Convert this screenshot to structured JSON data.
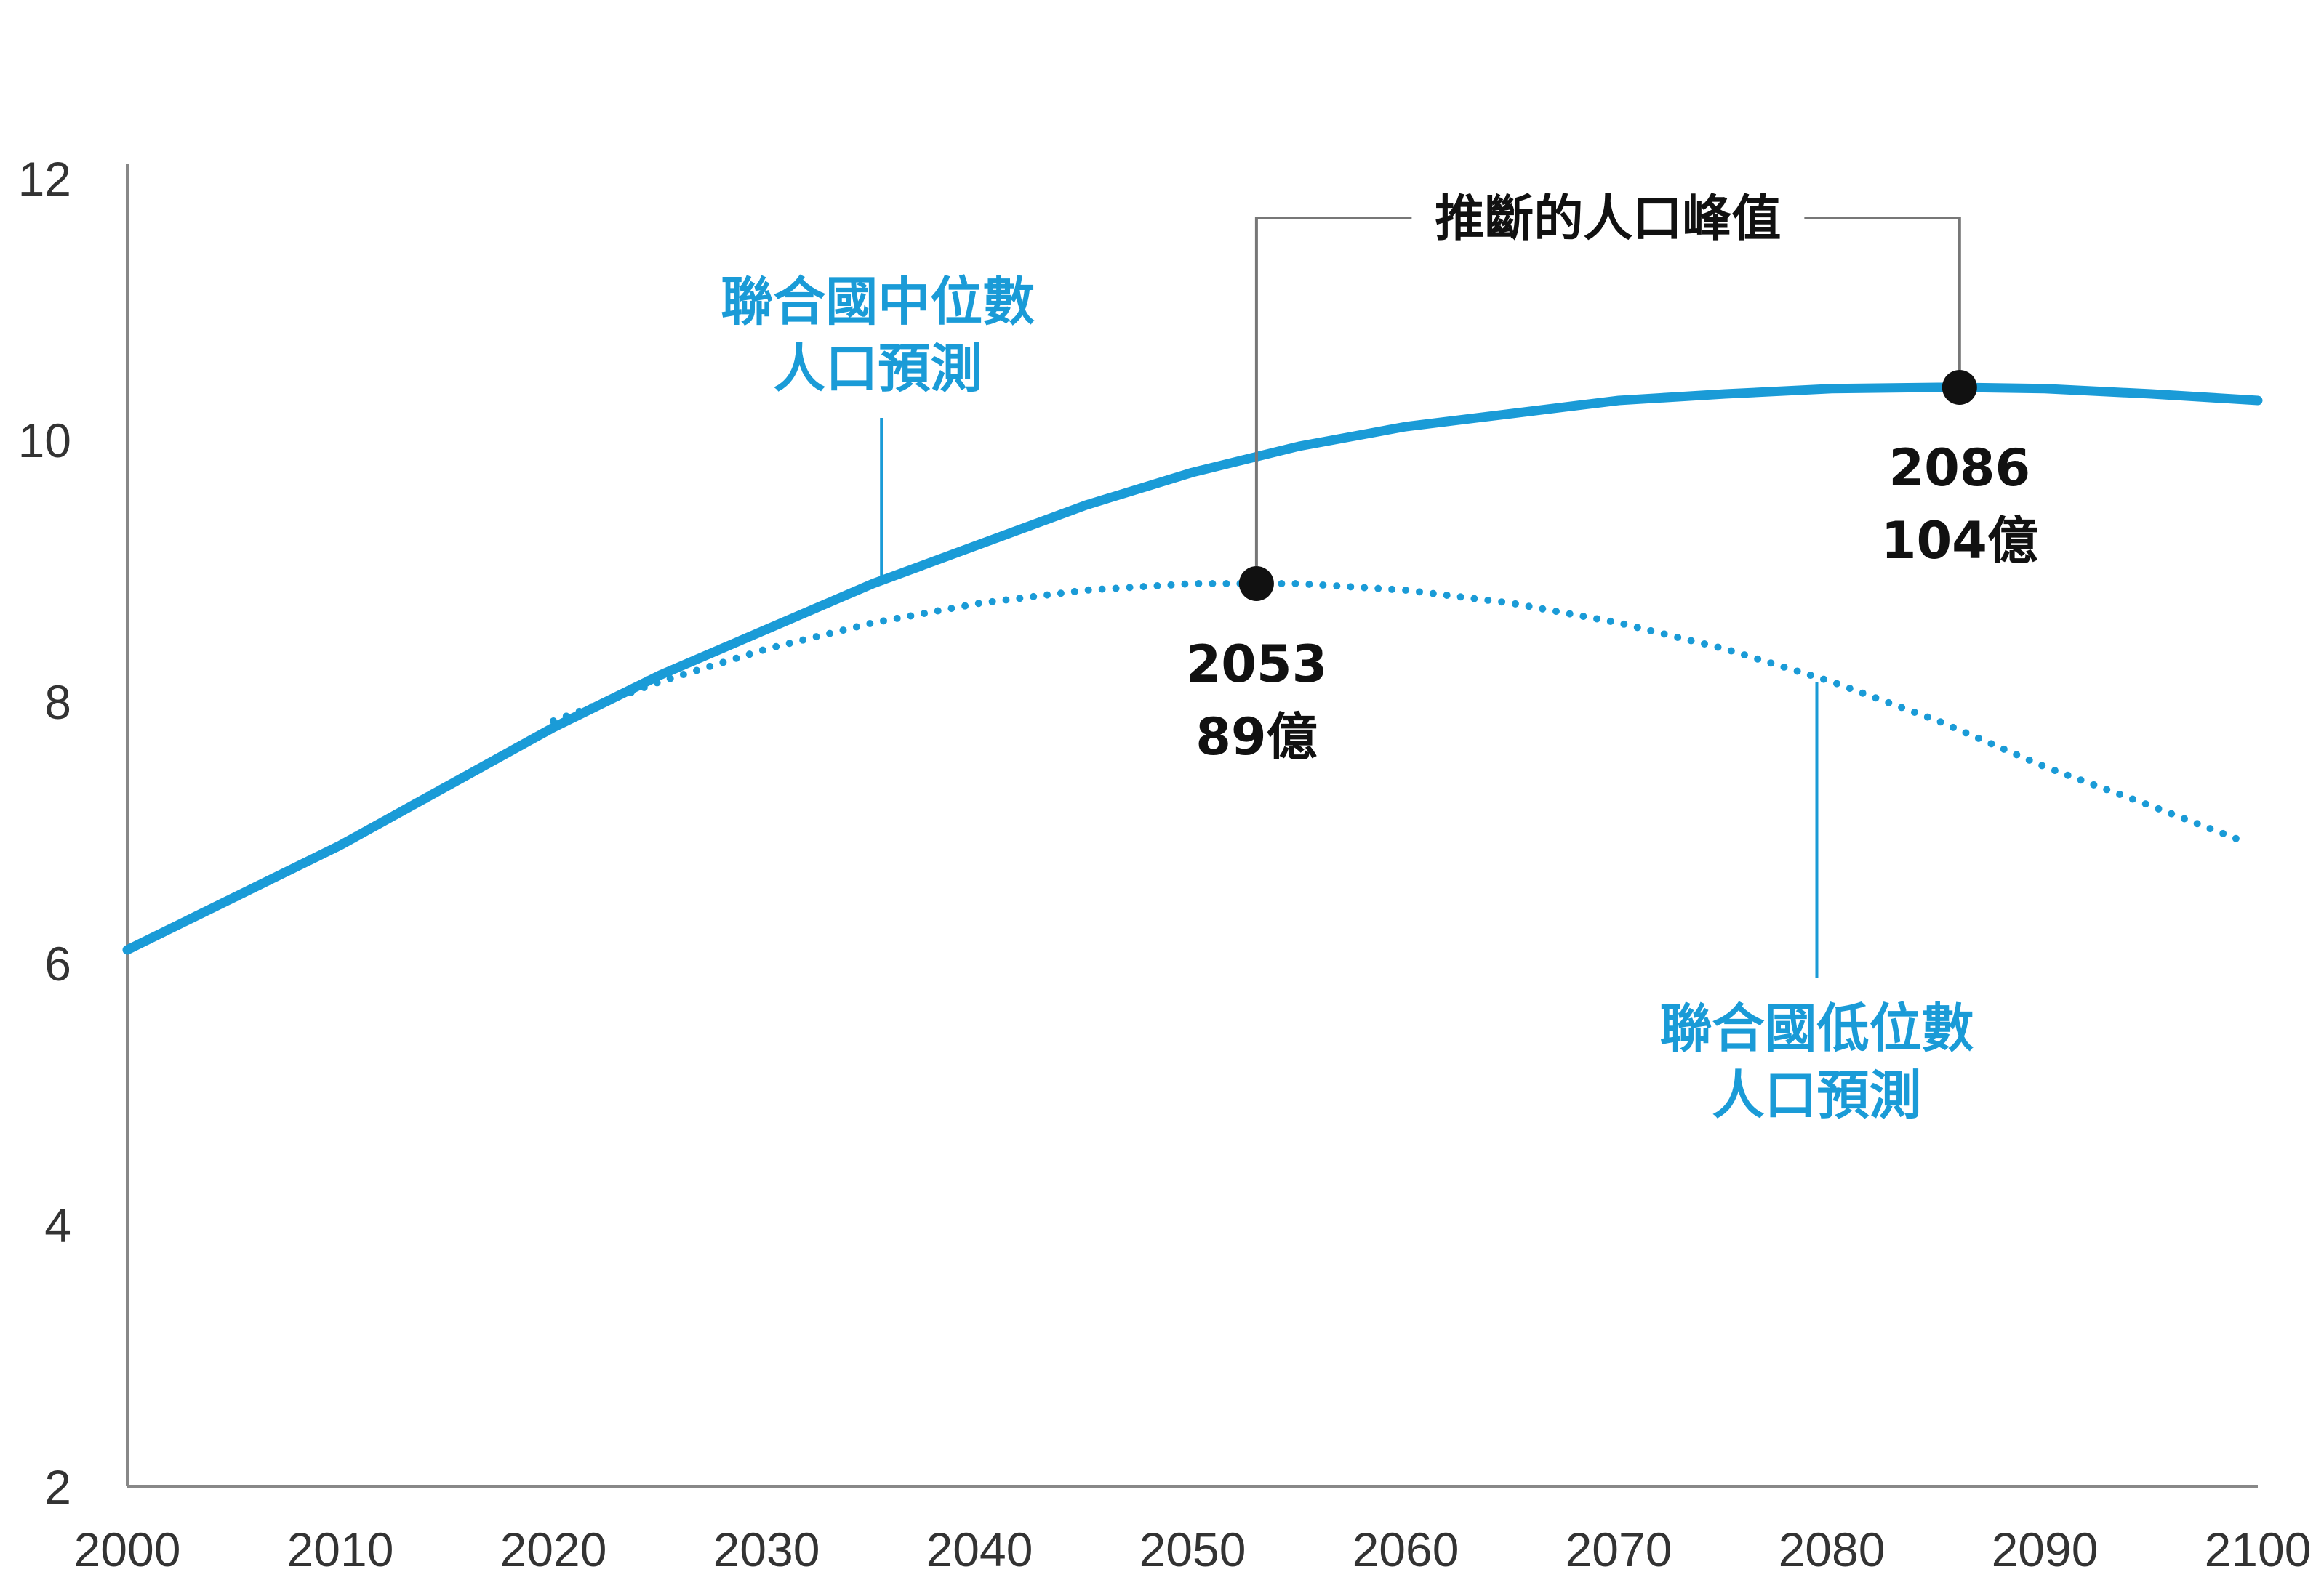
{
  "chart_data": {
    "type": "line",
    "title": "",
    "xlabel": "",
    "ylabel": "",
    "xlim": [
      2000,
      2100
    ],
    "ylim": [
      2,
      12
    ],
    "x_ticks": [
      "2000",
      "2010",
      "2020",
      "2030",
      "2040",
      "2050",
      "2060",
      "2070",
      "2080",
      "2090",
      "2100"
    ],
    "y_ticks": [
      "2",
      "4",
      "6",
      "8",
      "10",
      "12"
    ],
    "grid": false,
    "colors": {
      "series": "#1a9bd7",
      "axis": "#888888",
      "annotation": "#111111"
    },
    "series": [
      {
        "name": "聯合國中位數 人口預測",
        "style": "solid",
        "x": [
          2000,
          2005,
          2010,
          2015,
          2020,
          2025,
          2030,
          2035,
          2040,
          2045,
          2050,
          2055,
          2060,
          2065,
          2070,
          2075,
          2080,
          2085,
          2086,
          2090,
          2095,
          2100
        ],
        "y": [
          6.1,
          6.5,
          6.9,
          7.35,
          7.8,
          8.2,
          8.55,
          8.9,
          9.2,
          9.5,
          9.75,
          9.95,
          10.1,
          10.2,
          10.3,
          10.35,
          10.39,
          10.4,
          10.4,
          10.39,
          10.35,
          10.3
        ]
      },
      {
        "name": "聯合國低位數 人口預測",
        "style": "dotted",
        "x": [
          2020,
          2025,
          2030,
          2035,
          2040,
          2045,
          2050,
          2053,
          2055,
          2060,
          2065,
          2070,
          2075,
          2080,
          2085,
          2090,
          2095,
          2099
        ],
        "y": [
          7.85,
          8.15,
          8.4,
          8.6,
          8.75,
          8.85,
          8.9,
          8.9,
          8.9,
          8.85,
          8.75,
          8.6,
          8.4,
          8.15,
          7.85,
          7.5,
          7.2,
          6.95
        ]
      }
    ],
    "series_labels": [
      {
        "line1": "聯合國中位數",
        "line2": "人口預測"
      },
      {
        "line1": "聯合國低位數",
        "line2": "人口預測"
      }
    ],
    "annotations": {
      "title": "推斷的人口峰值",
      "peaks": [
        {
          "x": 2053,
          "y": 8.9,
          "year": "2053",
          "value": "89億"
        },
        {
          "x": 2086,
          "y": 10.4,
          "year": "2086",
          "value": "104億"
        }
      ]
    }
  }
}
